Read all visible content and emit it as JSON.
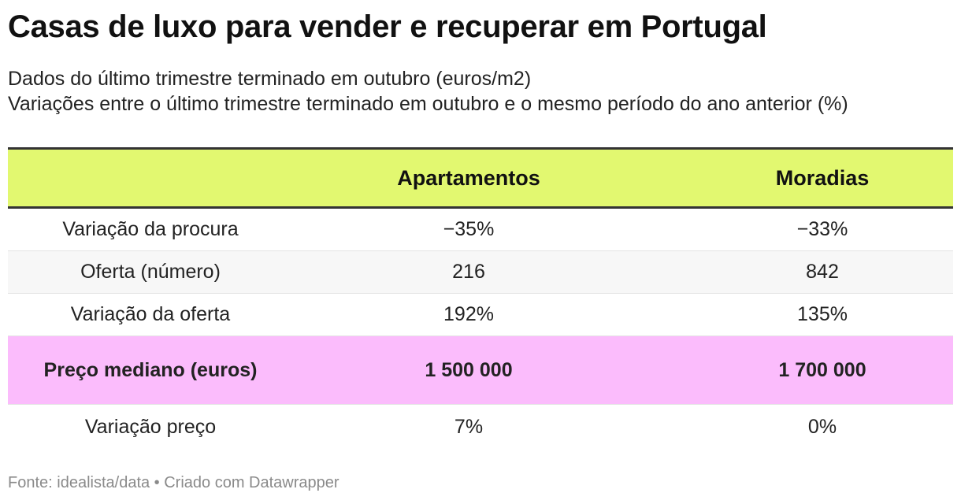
{
  "title": "Casas de luxo para vender e recuperar em Portugal",
  "subtitle": [
    "Dados do último trimestre terminado em outubro (euros/m2)",
    "Variações entre o último trimestre terminado em outubro e o mesmo período do ano anterior (%)"
  ],
  "chart_data": {
    "type": "table",
    "columns": [
      "",
      "Apartamentos",
      "Moradias"
    ],
    "rows": [
      {
        "label": "Variação da procura",
        "values": [
          "−35%",
          "−33%"
        ]
      },
      {
        "label": "Oferta (número)",
        "values": [
          "216",
          "842"
        ]
      },
      {
        "label": "Variação da oferta",
        "values": [
          "192%",
          "135%"
        ]
      },
      {
        "label": "Preço mediano (euros)",
        "values": [
          "1 500 000",
          "1 700 000"
        ],
        "highlight": true
      },
      {
        "label": "Variação preço",
        "values": [
          "7%",
          "0%"
        ]
      }
    ],
    "colors": {
      "header": "#e2f870",
      "highlight": "#fbbcfc"
    }
  },
  "footer": "Fonte: idealista/data • Criado com Datawrapper"
}
